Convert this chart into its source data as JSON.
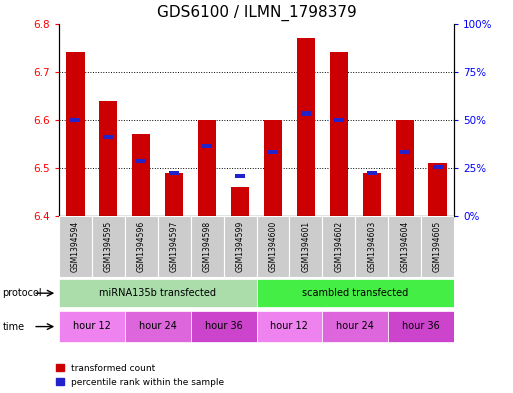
{
  "title": "GDS6100 / ILMN_1798379",
  "samples": [
    "GSM1394594",
    "GSM1394595",
    "GSM1394596",
    "GSM1394597",
    "GSM1394598",
    "GSM1394599",
    "GSM1394600",
    "GSM1394601",
    "GSM1394602",
    "GSM1394603",
    "GSM1394604",
    "GSM1394605"
  ],
  "bar_values": [
    6.74,
    6.64,
    6.57,
    6.49,
    6.6,
    6.46,
    6.6,
    6.77,
    6.74,
    6.49,
    6.6,
    6.51
  ],
  "percentile_values": [
    6.6,
    6.565,
    6.515,
    6.49,
    6.545,
    6.483,
    6.533,
    6.613,
    6.6,
    6.49,
    6.533,
    6.502
  ],
  "ymin": 6.4,
  "ymax": 6.8,
  "y2min": 0,
  "y2max": 100,
  "bar_color": "#cc0000",
  "blue_color": "#2222cc",
  "bar_width": 0.55,
  "sample_bg_color": "#cccccc",
  "proto_color_left": "#aaddaa",
  "proto_color_right": "#44dd44",
  "time_color_12": "#ee82ee",
  "time_color_24": "#dd66dd",
  "time_color_36": "#cc44cc",
  "title_fontsize": 11,
  "axis_fontsize": 7.5,
  "tick_labels_right": [
    "0%",
    "25%",
    "50%",
    "75%",
    "100%"
  ]
}
